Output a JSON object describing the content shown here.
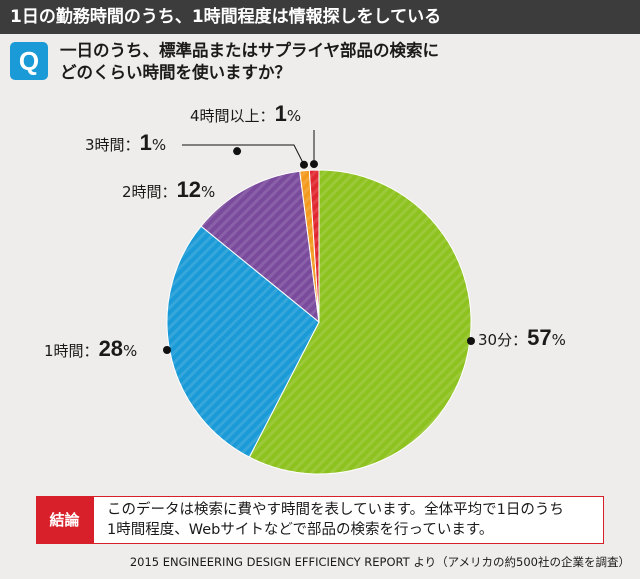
{
  "header": {
    "title": "1日の勤務時間のうち、1時間程度は情報探しをしている"
  },
  "question": {
    "badge": "Q",
    "line1": "一日のうち、標準品またはサプライヤ部品の検索に",
    "line2": "どのくらい時間を使いますか？"
  },
  "chart_data": {
    "type": "pie",
    "title": "",
    "slices": [
      {
        "label": "30分",
        "value": 57,
        "color": "#8dc21f"
      },
      {
        "label": "1時間",
        "value": 28,
        "color": "#1a9ad6"
      },
      {
        "label": "2時間",
        "value": 12,
        "color": "#7a4a9c"
      },
      {
        "label": "3時間",
        "value": 1,
        "color": "#f39a1e"
      },
      {
        "label": "4時間以上",
        "value": 1,
        "color": "#e0262e"
      }
    ]
  },
  "labels": {
    "s30": {
      "name": "30分",
      "sep": "：",
      "pct": "57",
      "unit": "%"
    },
    "s1h": {
      "name": "1時間",
      "sep": "：",
      "pct": "28",
      "unit": "%"
    },
    "s2h": {
      "name": "2時間",
      "sep": "：",
      "pct": "12",
      "unit": "%"
    },
    "s3h": {
      "name": "3時間",
      "sep": "：",
      "pct": "1",
      "unit": "%"
    },
    "s4h": {
      "name": "4時間以上",
      "sep": "：",
      "pct": "1",
      "unit": "%"
    }
  },
  "conclusion": {
    "tag": "結論",
    "line1": "このデータは検索に費やす時間を表しています。全体平均で1日のうち",
    "line2": "1時間程度、Webサイトなどで部品の検索を行っています。"
  },
  "source": "2015 ENGINEERING DESIGN EFFICIENCY REPORT より（アメリカの約500社の企業を調査）"
}
